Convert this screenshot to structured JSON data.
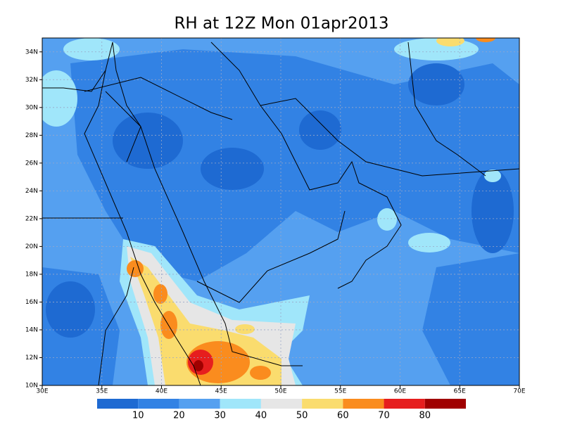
{
  "header": {
    "title": "RH at 12Z Mon 01apr2013"
  },
  "map": {
    "lon_range": [
      30,
      70
    ],
    "lat_range": [
      10,
      35
    ],
    "lon_ticks": [
      {
        "value": 30,
        "label": "30E"
      },
      {
        "value": 35,
        "label": "35E"
      },
      {
        "value": 40,
        "label": "40E"
      },
      {
        "value": 45,
        "label": "45E"
      },
      {
        "value": 50,
        "label": "50E"
      },
      {
        "value": 55,
        "label": "55E"
      },
      {
        "value": 60,
        "label": "60E"
      },
      {
        "value": 65,
        "label": "65E"
      },
      {
        "value": 70,
        "label": "70E"
      }
    ],
    "lat_ticks": [
      {
        "value": 10,
        "label": "10N"
      },
      {
        "value": 12,
        "label": "12N"
      },
      {
        "value": 14,
        "label": "14N"
      },
      {
        "value": 16,
        "label": "16N"
      },
      {
        "value": 18,
        "label": "18N"
      },
      {
        "value": 20,
        "label": "20N"
      },
      {
        "value": 22,
        "label": "22N"
      },
      {
        "value": 24,
        "label": "24N"
      },
      {
        "value": 26,
        "label": "26N"
      },
      {
        "value": 28,
        "label": "28N"
      },
      {
        "value": 30,
        "label": "30N"
      },
      {
        "value": 32,
        "label": "32N"
      },
      {
        "value": 34,
        "label": "34N"
      }
    ]
  },
  "colorbar": {
    "levels": [
      10,
      20,
      30,
      40,
      50,
      60,
      70,
      80
    ],
    "colors": [
      "#1e6ad2",
      "#3282e4",
      "#55a0f0",
      "#a0e6fa",
      "#e6e6e6",
      "#fadc6e",
      "#fa8c1e",
      "#e61e1e",
      "#a00000"
    ]
  }
}
